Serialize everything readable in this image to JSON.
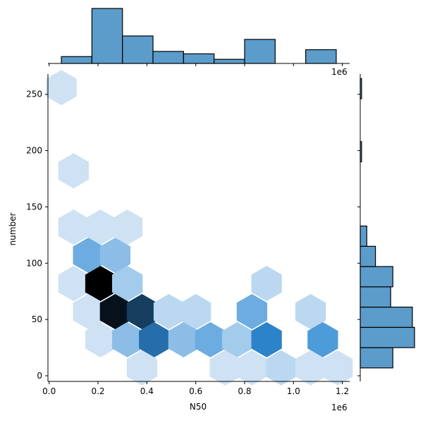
{
  "chart_data": {
    "type": "hexbin-joint",
    "xlabel": "N50",
    "ylabel": "number",
    "x_offset_label": "1e6",
    "x_tick_labels": [
      "0.0",
      "0.2",
      "0.4",
      "0.6",
      "0.8",
      "1.0",
      "1.2"
    ],
    "x_ticks": [
      0,
      200000,
      400000,
      600000,
      800000,
      1000000,
      1200000
    ],
    "y_tick_labels": [
      "0",
      "50",
      "100",
      "150",
      "200",
      "250"
    ],
    "y_ticks": [
      0,
      50,
      100,
      150,
      200,
      250
    ],
    "xlim": [
      -5000,
      1230000
    ],
    "ylim": [
      -5,
      268
    ],
    "hexbins": [
      {
        "x": 50000,
        "y": 256,
        "level": 0.08
      },
      {
        "x": 100000,
        "y": 182,
        "level": 0.08
      },
      {
        "x": 100000,
        "y": 132,
        "level": 0.08
      },
      {
        "x": 210000,
        "y": 132,
        "level": 0.08
      },
      {
        "x": 320000,
        "y": 132,
        "level": 0.08
      },
      {
        "x": 160000,
        "y": 107,
        "level": 0.4
      },
      {
        "x": 270000,
        "y": 107,
        "level": 0.3
      },
      {
        "x": 100000,
        "y": 82,
        "level": 0.08
      },
      {
        "x": 210000,
        "y": 82,
        "level": 1.0
      },
      {
        "x": 320000,
        "y": 82,
        "level": 0.22
      },
      {
        "x": 890000,
        "y": 82,
        "level": 0.14
      },
      {
        "x": 160000,
        "y": 57,
        "level": 0.08
      },
      {
        "x": 270000,
        "y": 57,
        "level": 0.95
      },
      {
        "x": 380000,
        "y": 57,
        "level": 0.82
      },
      {
        "x": 490000,
        "y": 57,
        "level": 0.14
      },
      {
        "x": 600000,
        "y": 57,
        "level": 0.14
      },
      {
        "x": 830000,
        "y": 57,
        "level": 0.4
      },
      {
        "x": 1070000,
        "y": 57,
        "level": 0.14
      },
      {
        "x": 210000,
        "y": 32,
        "level": 0.08
      },
      {
        "x": 320000,
        "y": 32,
        "level": 0.3
      },
      {
        "x": 430000,
        "y": 32,
        "level": 0.68
      },
      {
        "x": 550000,
        "y": 32,
        "level": 0.3
      },
      {
        "x": 660000,
        "y": 32,
        "level": 0.4
      },
      {
        "x": 770000,
        "y": 32,
        "level": 0.22
      },
      {
        "x": 890000,
        "y": 32,
        "level": 0.62
      },
      {
        "x": 1120000,
        "y": 32,
        "level": 0.5
      },
      {
        "x": 380000,
        "y": 7,
        "level": 0.08
      },
      {
        "x": 720000,
        "y": 7,
        "level": 0.08
      },
      {
        "x": 830000,
        "y": 7,
        "level": 0.08
      },
      {
        "x": 950000,
        "y": 7,
        "level": 0.14
      },
      {
        "x": 1070000,
        "y": 7,
        "level": 0.08
      },
      {
        "x": 1180000,
        "y": 7,
        "level": 0.08
      }
    ],
    "x_marginal_histogram": {
      "bin_edges": [
        50000,
        175000,
        300000,
        425000,
        550000,
        675000,
        800000,
        925000,
        1050000,
        1175000
      ],
      "counts": [
        2,
        16,
        8,
        3.5,
        2.8,
        1.2,
        7,
        0,
        4
      ]
    },
    "y_marginal_histogram": {
      "bin_edges": [
        7,
        25,
        43,
        61,
        79,
        97,
        115,
        133
      ],
      "counts": [
        15,
        25,
        24,
        14,
        15,
        7,
        3
      ],
      "outliers": [
        {
          "bin_edges": [
            190,
            208
          ],
          "count": 0.6
        },
        {
          "bin_edges": [
            246,
            264
          ],
          "count": 0.6
        }
      ]
    },
    "colors": {
      "bar_fill": "#5b9ccb",
      "bar_edge": "#000000",
      "hex_light": "#e6f0f9",
      "hex_mid": "#2f8ad4",
      "hex_dark": "#000000"
    }
  }
}
